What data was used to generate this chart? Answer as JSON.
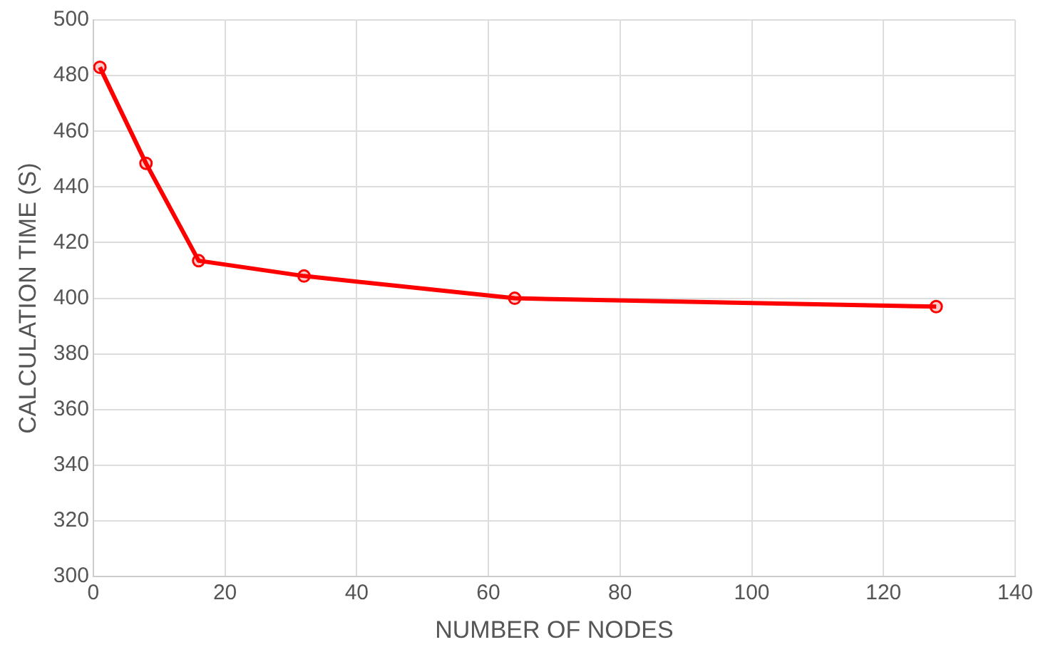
{
  "chart_data": {
    "type": "line",
    "xlabel": "NUMBER OF NODES",
    "ylabel": "CALCULATION TIME (S)",
    "x": [
      1,
      8,
      16,
      32,
      64,
      128
    ],
    "series": [
      {
        "color": "#ff0000",
        "values": [
          483,
          448.5,
          413.5,
          408,
          400,
          397
        ]
      }
    ],
    "xlim": [
      0,
      140
    ],
    "xticks": [
      0,
      20,
      40,
      60,
      80,
      100,
      120,
      140
    ],
    "ylim": [
      300,
      500
    ],
    "yticks": [
      300,
      320,
      340,
      360,
      380,
      400,
      420,
      440,
      460,
      480,
      500
    ],
    "grid": true,
    "marker": "circle",
    "line_style": "solid",
    "legend": false
  }
}
